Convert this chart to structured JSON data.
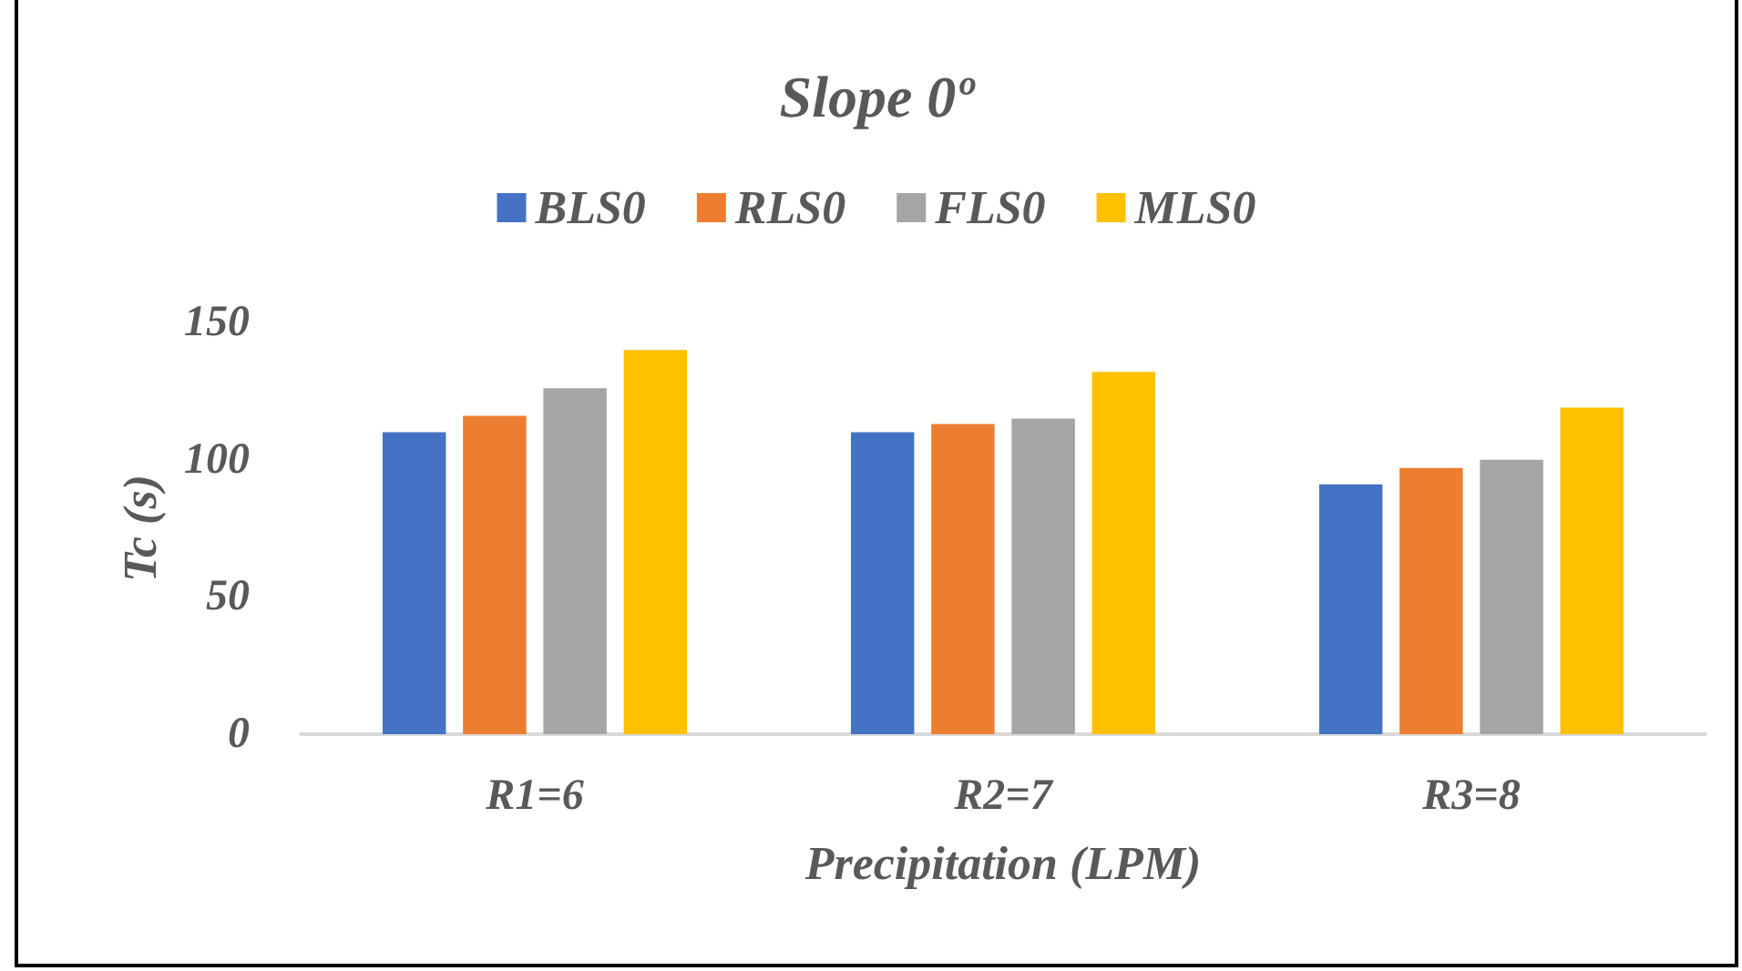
{
  "chart_data": {
    "type": "bar",
    "title": "Slope 0º",
    "xlabel": "Precipitation (LPM)",
    "ylabel": "Tc (s)",
    "categories": [
      "R1=6",
      "R2=7",
      "R3=8"
    ],
    "series": [
      {
        "name": "BLS0",
        "color": "#4472c4",
        "values": [
          110,
          110,
          91
        ]
      },
      {
        "name": "RLS0",
        "color": "#ed7d31",
        "values": [
          116,
          113,
          97
        ]
      },
      {
        "name": "FLS0",
        "color": "#a5a5a5",
        "values": [
          126,
          115,
          100
        ]
      },
      {
        "name": "MLS0",
        "color": "#ffc000",
        "values": [
          140,
          132,
          119
        ]
      }
    ],
    "ylim": [
      0,
      150
    ],
    "yticks": [
      0,
      50,
      100,
      150
    ],
    "grid": false,
    "legend": "top"
  }
}
